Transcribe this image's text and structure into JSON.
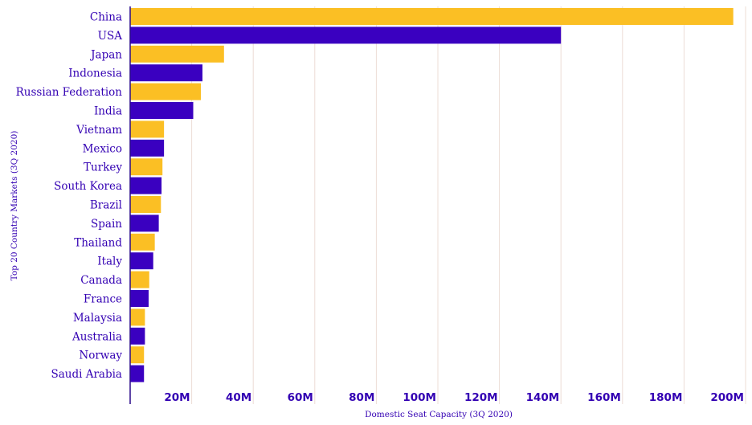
{
  "chart_data": {
    "type": "bar",
    "orientation": "horizontal",
    "xlabel": "Domestic Seat Capacity (3Q 2020)",
    "ylabel": "Top 20 Country Markets (3Q 2020)",
    "xlim": [
      0,
      200000000
    ],
    "xticks": [
      20000000,
      40000000,
      60000000,
      80000000,
      100000000,
      120000000,
      140000000,
      160000000,
      180000000,
      200000000
    ],
    "xtick_labels": [
      "20M",
      "40M",
      "60M",
      "80M",
      "100M",
      "120M",
      "140M",
      "160M",
      "180M",
      "200M"
    ],
    "grid": "vertical",
    "colors": [
      "#fbbf24",
      "#3a00c0"
    ],
    "categories": [
      "China",
      "USA",
      "Japan",
      "Indonesia",
      "Russian Federation",
      "India",
      "Vietnam",
      "Mexico",
      "Turkey",
      "South Korea",
      "Brazil",
      "Spain",
      "Thailand",
      "Italy",
      "Canada",
      "France",
      "Malaysia",
      "Australia",
      "Norway",
      "Saudi Arabia"
    ],
    "values": [
      196000000,
      140000000,
      30500000,
      23500000,
      23000000,
      20500000,
      11000000,
      11000000,
      10500000,
      10200000,
      10000000,
      9300000,
      8000000,
      7500000,
      6200000,
      6000000,
      4800000,
      4800000,
      4500000,
      4500000
    ]
  }
}
